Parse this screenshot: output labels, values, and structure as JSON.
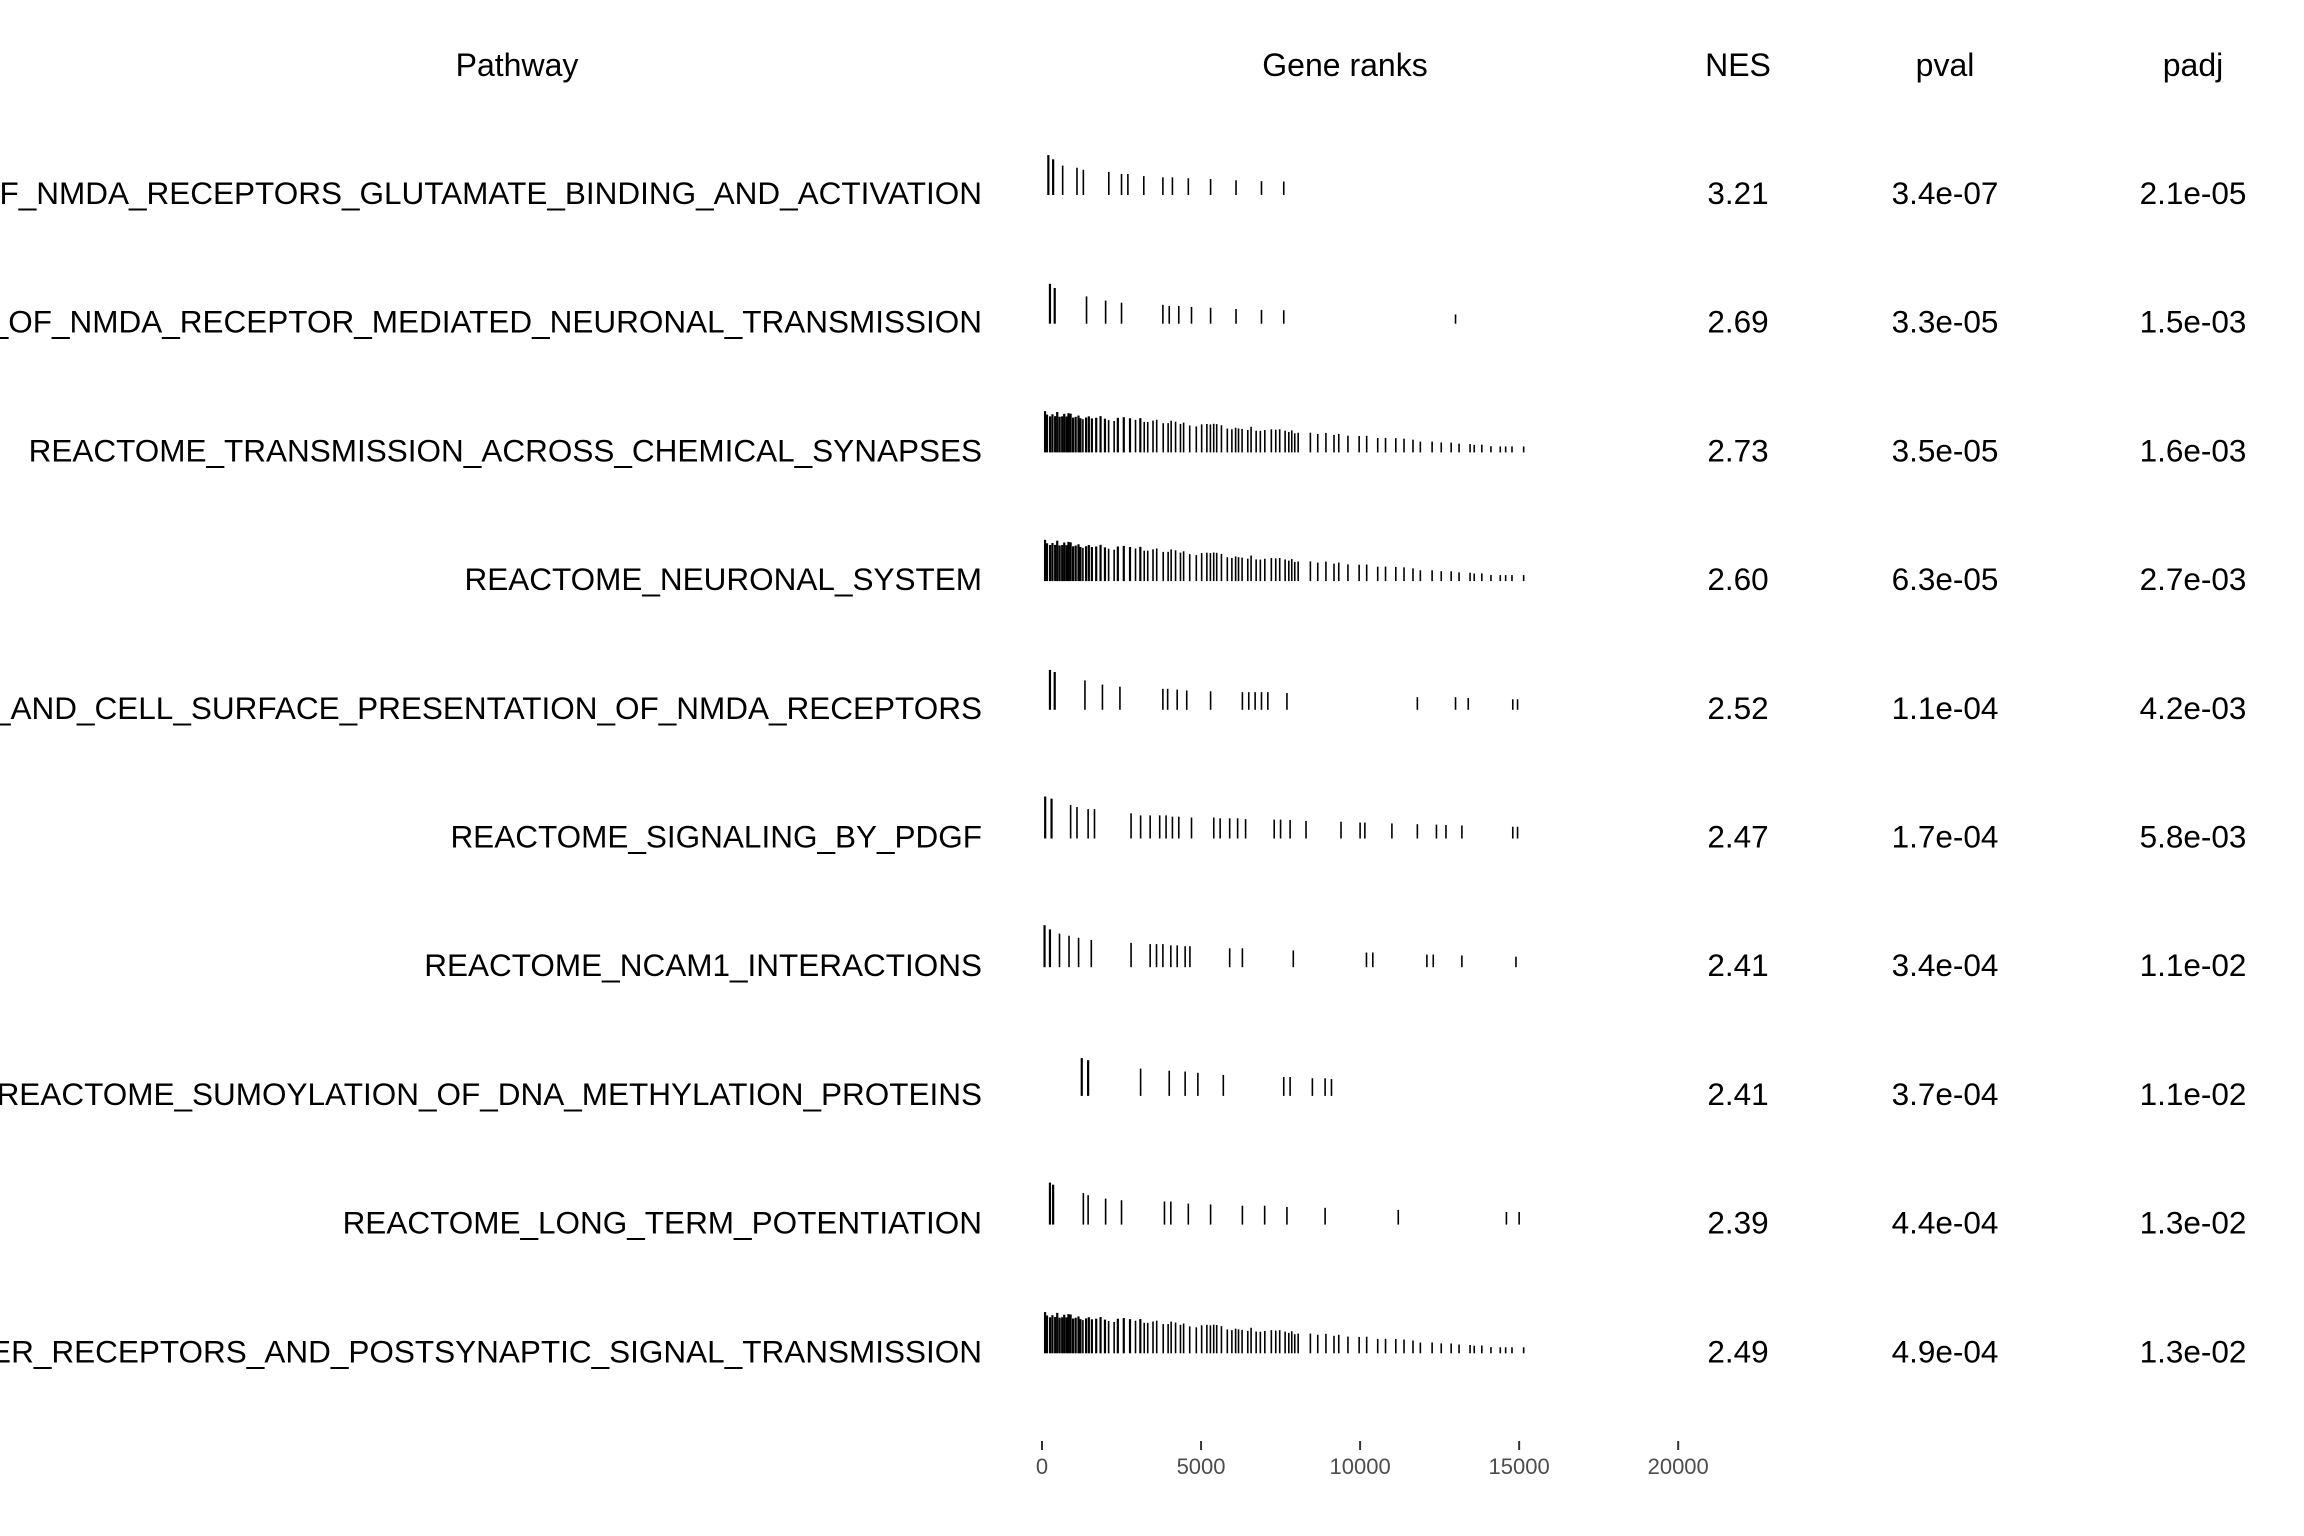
{
  "chart_data": {
    "type": "table",
    "kind": "fgsea GSEA table plot",
    "headers": {
      "pathway": "Pathway",
      "ranks": "Gene ranks",
      "nes": "NES",
      "pval": "pval",
      "padj": "padj"
    },
    "x_axis": {
      "range": [
        0,
        21000
      ],
      "ticks": [
        0,
        5000,
        10000,
        15000,
        20000
      ],
      "tick_labels": [
        "0",
        "5000",
        "10000",
        "15000",
        "20000"
      ]
    },
    "colors": {
      "text": "#000000",
      "axis_text": "#4d4d4d",
      "bars": "#000000",
      "background": "#ffffff"
    },
    "rows": [
      {
        "pathway": "REACTOME_ACTIVATION_OF_NMDA_RECEPTORS_GLUTAMATE_BINDING_AND_ACTIVATION",
        "nes": "3.21",
        "pval": "3.4e-07",
        "padj": "2.1e-05",
        "hits": [
          {
            "r": 200,
            "s": 0.95
          },
          {
            "r": 350,
            "s": 0.85
          },
          {
            "r": 650,
            "s": 0.7
          },
          {
            "r": 1100,
            "s": 0.65
          },
          {
            "r": 1300,
            "s": 0.6
          },
          {
            "r": 2100,
            "s": 0.55
          },
          {
            "r": 2500,
            "s": 0.5
          },
          {
            "r": 2700,
            "s": 0.5
          },
          {
            "r": 3200,
            "s": 0.45
          },
          {
            "r": 3800,
            "s": 0.42
          },
          {
            "r": 4100,
            "s": 0.42
          },
          {
            "r": 4600,
            "s": 0.4
          },
          {
            "r": 5300,
            "s": 0.38
          },
          {
            "r": 6100,
            "s": 0.35
          },
          {
            "r": 6900,
            "s": 0.33
          },
          {
            "r": 7600,
            "s": 0.32
          }
        ]
      },
      {
        "pathway": "REACTOME_ASSEMBLY_AND_CELL_SURFACE_PRESENTATION_OF_NMDA_RECEPTORS_REGULATION_OF_NMDA_RECEPTOR_MEDIATED_NEURONAL_TRANSMISSION",
        "nes": "2.69",
        "pval": "3.3e-05",
        "padj": "1.5e-03",
        "hits": [
          {
            "r": 250,
            "s": 0.95
          },
          {
            "r": 400,
            "s": 0.85
          },
          {
            "r": 1400,
            "s": 0.65
          },
          {
            "r": 2000,
            "s": 0.55
          },
          {
            "r": 2500,
            "s": 0.5
          },
          {
            "r": 3800,
            "s": 0.45
          },
          {
            "r": 4000,
            "s": 0.42
          },
          {
            "r": 4300,
            "s": 0.42
          },
          {
            "r": 4700,
            "s": 0.4
          },
          {
            "r": 5300,
            "s": 0.38
          },
          {
            "r": 6100,
            "s": 0.35
          },
          {
            "r": 6900,
            "s": 0.33
          },
          {
            "r": 7600,
            "s": 0.32
          },
          {
            "r": 13000,
            "s": 0.22
          }
        ]
      },
      {
        "pathway": "REACTOME_TRANSMISSION_ACROSS_CHEMICAL_SYNAPSES",
        "nes": "2.73",
        "pval": "3.5e-05",
        "padj": "1.6e-03",
        "hits": "dense"
      },
      {
        "pathway": "REACTOME_NEURONAL_SYSTEM",
        "nes": "2.60",
        "pval": "6.3e-05",
        "padj": "2.7e-03",
        "hits": "dense"
      },
      {
        "pathway": "REACTOME_ASSEMBLY_AND_CELL_SURFACE_PRESENTATION_OF_NMDA_RECEPTORS",
        "nes": "2.52",
        "pval": "1.1e-04",
        "padj": "4.2e-03",
        "hits": [
          {
            "r": 250,
            "s": 0.95
          },
          {
            "r": 400,
            "s": 0.9
          },
          {
            "r": 1350,
            "s": 0.7
          },
          {
            "r": 1900,
            "s": 0.6
          },
          {
            "r": 2450,
            "s": 0.55
          },
          {
            "r": 3800,
            "s": 0.5
          },
          {
            "r": 3950,
            "s": 0.5
          },
          {
            "r": 4250,
            "s": 0.48
          },
          {
            "r": 4550,
            "s": 0.46
          },
          {
            "r": 5300,
            "s": 0.44
          },
          {
            "r": 6300,
            "s": 0.42
          },
          {
            "r": 6500,
            "s": 0.42
          },
          {
            "r": 6700,
            "s": 0.42
          },
          {
            "r": 6900,
            "s": 0.42
          },
          {
            "r": 7100,
            "s": 0.42
          },
          {
            "r": 7700,
            "s": 0.4
          },
          {
            "r": 11800,
            "s": 0.3
          },
          {
            "r": 13000,
            "s": 0.3
          },
          {
            "r": 13400,
            "s": 0.28
          },
          {
            "r": 14800,
            "s": 0.25
          },
          {
            "r": 14950,
            "s": 0.25
          }
        ]
      },
      {
        "pathway": "REACTOME_SIGNALING_BY_PDGF",
        "nes": "2.47",
        "pval": "1.7e-04",
        "padj": "5.8e-03",
        "hits": [
          {
            "r": 100,
            "s": 1.0
          },
          {
            "r": 300,
            "s": 0.95
          },
          {
            "r": 900,
            "s": 0.8
          },
          {
            "r": 1100,
            "s": 0.75
          },
          {
            "r": 1450,
            "s": 0.7
          },
          {
            "r": 1650,
            "s": 0.7
          },
          {
            "r": 2800,
            "s": 0.6
          },
          {
            "r": 3100,
            "s": 0.55
          },
          {
            "r": 3400,
            "s": 0.55
          },
          {
            "r": 3700,
            "s": 0.55
          },
          {
            "r": 3900,
            "s": 0.55
          },
          {
            "r": 4100,
            "s": 0.52
          },
          {
            "r": 4300,
            "s": 0.52
          },
          {
            "r": 4700,
            "s": 0.5
          },
          {
            "r": 5400,
            "s": 0.5
          },
          {
            "r": 5600,
            "s": 0.48
          },
          {
            "r": 5900,
            "s": 0.48
          },
          {
            "r": 6150,
            "s": 0.48
          },
          {
            "r": 6400,
            "s": 0.46
          },
          {
            "r": 7300,
            "s": 0.45
          },
          {
            "r": 7500,
            "s": 0.45
          },
          {
            "r": 7800,
            "s": 0.44
          },
          {
            "r": 8300,
            "s": 0.42
          },
          {
            "r": 9400,
            "s": 0.4
          },
          {
            "r": 10000,
            "s": 0.38
          },
          {
            "r": 10150,
            "s": 0.38
          },
          {
            "r": 11000,
            "s": 0.36
          },
          {
            "r": 11800,
            "s": 0.34
          },
          {
            "r": 12400,
            "s": 0.33
          },
          {
            "r": 12700,
            "s": 0.32
          },
          {
            "r": 13200,
            "s": 0.31
          },
          {
            "r": 14800,
            "s": 0.28
          },
          {
            "r": 14950,
            "s": 0.28
          }
        ]
      },
      {
        "pathway": "REACTOME_NCAM1_INTERACTIONS",
        "nes": "2.41",
        "pval": "3.4e-04",
        "padj": "1.1e-02",
        "hits": [
          {
            "r": 80,
            "s": 1.0
          },
          {
            "r": 250,
            "s": 0.9
          },
          {
            "r": 550,
            "s": 0.8
          },
          {
            "r": 850,
            "s": 0.75
          },
          {
            "r": 1150,
            "s": 0.7
          },
          {
            "r": 1550,
            "s": 0.65
          },
          {
            "r": 2800,
            "s": 0.58
          },
          {
            "r": 3400,
            "s": 0.55
          },
          {
            "r": 3600,
            "s": 0.55
          },
          {
            "r": 3800,
            "s": 0.55
          },
          {
            "r": 4050,
            "s": 0.52
          },
          {
            "r": 4250,
            "s": 0.52
          },
          {
            "r": 4500,
            "s": 0.5
          },
          {
            "r": 4650,
            "s": 0.5
          },
          {
            "r": 5900,
            "s": 0.45
          },
          {
            "r": 6300,
            "s": 0.45
          },
          {
            "r": 7900,
            "s": 0.4
          },
          {
            "r": 10200,
            "s": 0.35
          },
          {
            "r": 10400,
            "s": 0.35
          },
          {
            "r": 12100,
            "s": 0.3
          },
          {
            "r": 12300,
            "s": 0.3
          },
          {
            "r": 13200,
            "s": 0.28
          },
          {
            "r": 14900,
            "s": 0.25
          }
        ]
      },
      {
        "pathway": "REACTOME_SUMOYLATION_OF_DNA_METHYLATION_PROTEINS",
        "nes": "2.41",
        "pval": "3.7e-04",
        "padj": "1.1e-02",
        "hits": [
          {
            "r": 1250,
            "s": 0.9
          },
          {
            "r": 1450,
            "s": 0.85
          },
          {
            "r": 3100,
            "s": 0.65
          },
          {
            "r": 4000,
            "s": 0.6
          },
          {
            "r": 4500,
            "s": 0.58
          },
          {
            "r": 4900,
            "s": 0.55
          },
          {
            "r": 5700,
            "s": 0.5
          },
          {
            "r": 7600,
            "s": 0.45
          },
          {
            "r": 7800,
            "s": 0.45
          },
          {
            "r": 8500,
            "s": 0.42
          },
          {
            "r": 8900,
            "s": 0.42
          },
          {
            "r": 9100,
            "s": 0.4
          }
        ]
      },
      {
        "pathway": "REACTOME_LONG_TERM_POTENTIATION",
        "nes": "2.39",
        "pval": "4.4e-04",
        "padj": "1.3e-02",
        "hits": [
          {
            "r": 250,
            "s": 1.0
          },
          {
            "r": 350,
            "s": 0.95
          },
          {
            "r": 1300,
            "s": 0.75
          },
          {
            "r": 1450,
            "s": 0.7
          },
          {
            "r": 2000,
            "s": 0.62
          },
          {
            "r": 2500,
            "s": 0.58
          },
          {
            "r": 3850,
            "s": 0.55
          },
          {
            "r": 4050,
            "s": 0.55
          },
          {
            "r": 4600,
            "s": 0.5
          },
          {
            "r": 5300,
            "s": 0.48
          },
          {
            "r": 6300,
            "s": 0.45
          },
          {
            "r": 7000,
            "s": 0.45
          },
          {
            "r": 7700,
            "s": 0.42
          },
          {
            "r": 8900,
            "s": 0.4
          },
          {
            "r": 11200,
            "s": 0.35
          },
          {
            "r": 14600,
            "s": 0.3
          },
          {
            "r": 15000,
            "s": 0.3
          }
        ]
      },
      {
        "pathway": "REACTOME_NEUROTRANSMITTER_RECEPTORS_AND_POSTSYNAPTIC_SIGNAL_TRANSMISSION",
        "nes": "2.49",
        "pval": "4.9e-04",
        "padj": "1.3e-02",
        "hits": "dense"
      }
    ]
  }
}
